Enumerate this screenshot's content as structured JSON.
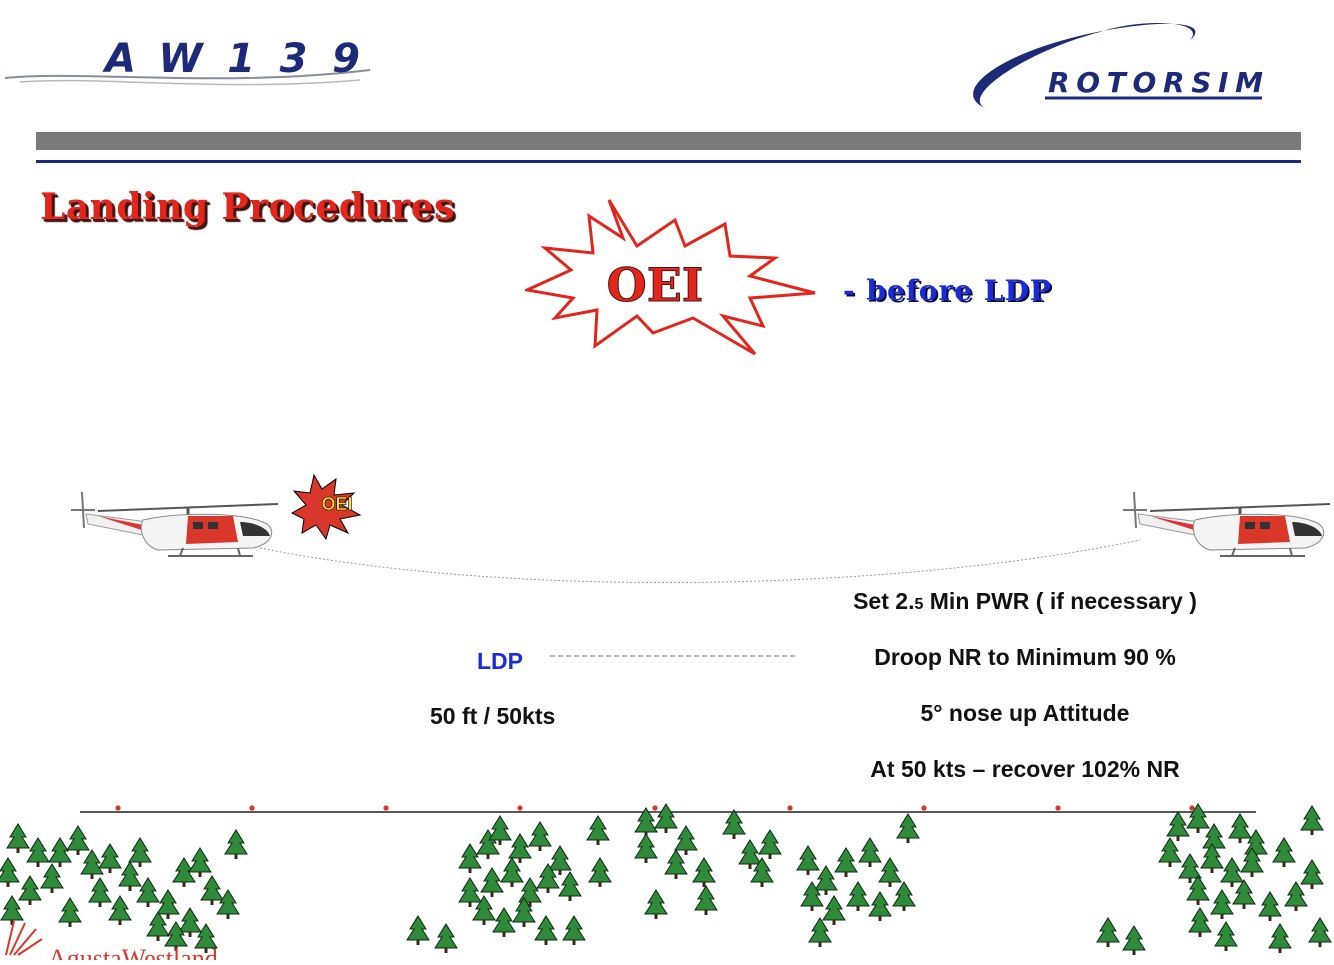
{
  "logos": {
    "aircraft_model": "AW139",
    "simulator_brand": "ROTORSIM",
    "manufacturer": "AgustaWestland"
  },
  "slide": {
    "title": "Landing Procedures",
    "burst_label": "OEI",
    "subtitle": "-  before  LDP"
  },
  "diagram": {
    "failure_badge": "OEI",
    "ldp_label": "LDP",
    "ldp_conditions": "50 ft  / 50kts",
    "steps": [
      {
        "pre": "Set 2.",
        "small": "5",
        "post": " Min PWR ( if necessary )"
      },
      {
        "text": "Droop NR to Minimum 90 %"
      },
      {
        "text": "5° nose up Attitude"
      },
      {
        "text": "At 50 kts – recover 102% NR"
      }
    ]
  },
  "colors": {
    "title_red": "#e2261c",
    "accent_blue": "#1b2bd8",
    "navy": "#1c2a78",
    "bar_grey": "#7a7a7a",
    "tree_green": "#2f8a3a"
  },
  "icons": [
    "helicopter-icon",
    "explosion-burst-icon",
    "tree-icon"
  ]
}
